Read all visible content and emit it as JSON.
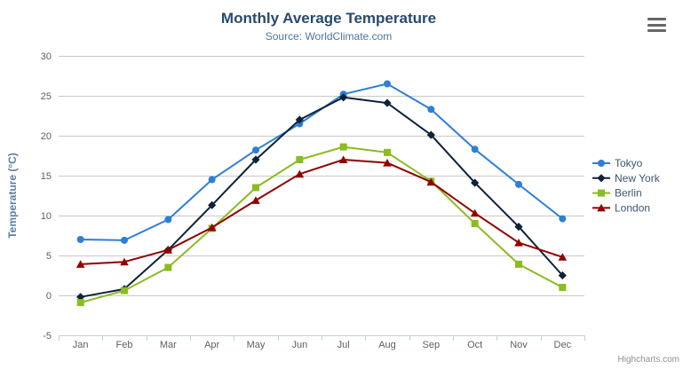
{
  "chart_data": {
    "type": "line",
    "title": "Monthly Average Temperature",
    "subtitle": "Source: WorldClimate.com",
    "xlabel": "",
    "ylabel": "Temperature (°C)",
    "categories": [
      "Jan",
      "Feb",
      "Mar",
      "Apr",
      "May",
      "Jun",
      "Jul",
      "Aug",
      "Sep",
      "Oct",
      "Nov",
      "Dec"
    ],
    "series": [
      {
        "name": "Tokyo",
        "color": "#2f7ed8",
        "marker": "circle",
        "values": [
          7.0,
          6.9,
          9.5,
          14.5,
          18.2,
          21.5,
          25.2,
          26.5,
          23.3,
          18.3,
          13.9,
          9.6
        ]
      },
      {
        "name": "New York",
        "color": "#0d233a",
        "marker": "diamond",
        "values": [
          -0.2,
          0.8,
          5.7,
          11.3,
          17.0,
          22.0,
          24.8,
          24.1,
          20.1,
          14.1,
          8.6,
          2.5
        ]
      },
      {
        "name": "Berlin",
        "color": "#8bbc21",
        "marker": "square",
        "values": [
          -0.9,
          0.6,
          3.5,
          8.4,
          13.5,
          17.0,
          18.6,
          17.9,
          14.3,
          9.0,
          3.9,
          1.0
        ]
      },
      {
        "name": "London",
        "color": "#910000",
        "marker": "triangle",
        "values": [
          3.9,
          4.2,
          5.7,
          8.5,
          11.9,
          15.2,
          17.0,
          16.6,
          14.2,
          10.3,
          6.6,
          4.8
        ]
      }
    ],
    "ylim": [
      -5,
      30
    ],
    "yticks": [
      -5,
      0,
      5,
      10,
      15,
      20,
      25,
      30
    ],
    "grid": true,
    "legend_position": "right"
  },
  "credits_label": "Highcharts.com",
  "theme": {
    "title_color": "#274b6d",
    "subtitle_color": "#4d759e",
    "axis_title_color": "#5b7ca5",
    "tick_label_color": "#606060",
    "grid_line_color": "#c8c8c8",
    "axis_line_color": "#c0d0e0",
    "legend_text_color": "#3e576f",
    "credits_color": "#909090",
    "menu_icon_color": "#666666",
    "background": "#ffffff"
  }
}
